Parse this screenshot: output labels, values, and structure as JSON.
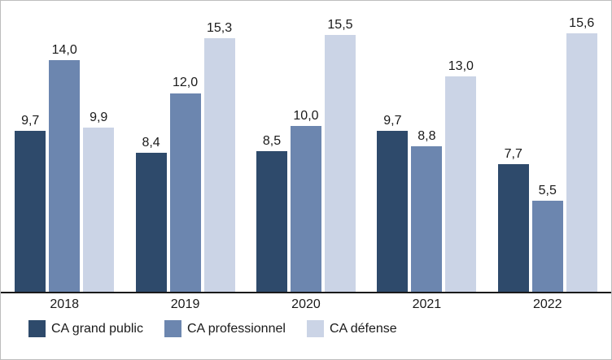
{
  "chart_data": {
    "type": "bar",
    "title": "",
    "xlabel": "",
    "ylabel": "",
    "ylim": [
      0,
      16
    ],
    "grid": false,
    "legend_position": "bottom",
    "categories": [
      "2018",
      "2019",
      "2020",
      "2021",
      "2022"
    ],
    "series": [
      {
        "name": "CA grand public",
        "color": "#2e4a6b",
        "values": [
          9.7,
          8.4,
          8.5,
          9.7,
          7.7
        ],
        "labels": [
          "9,7",
          "8,4",
          "8,5",
          "9,7",
          "7,7"
        ]
      },
      {
        "name": "CA professionnel",
        "color": "#6c86af",
        "values": [
          14.0,
          12.0,
          10.0,
          8.8,
          5.5
        ],
        "labels": [
          "14,0",
          "12,0",
          "10,0",
          "8,8",
          "5,5"
        ]
      },
      {
        "name": "CA défense",
        "color": "#cbd4e6",
        "values": [
          9.9,
          15.3,
          15.5,
          13.0,
          15.6
        ],
        "labels": [
          "9,9",
          "15,3",
          "15,5",
          "13,0",
          "15,6"
        ]
      }
    ]
  }
}
